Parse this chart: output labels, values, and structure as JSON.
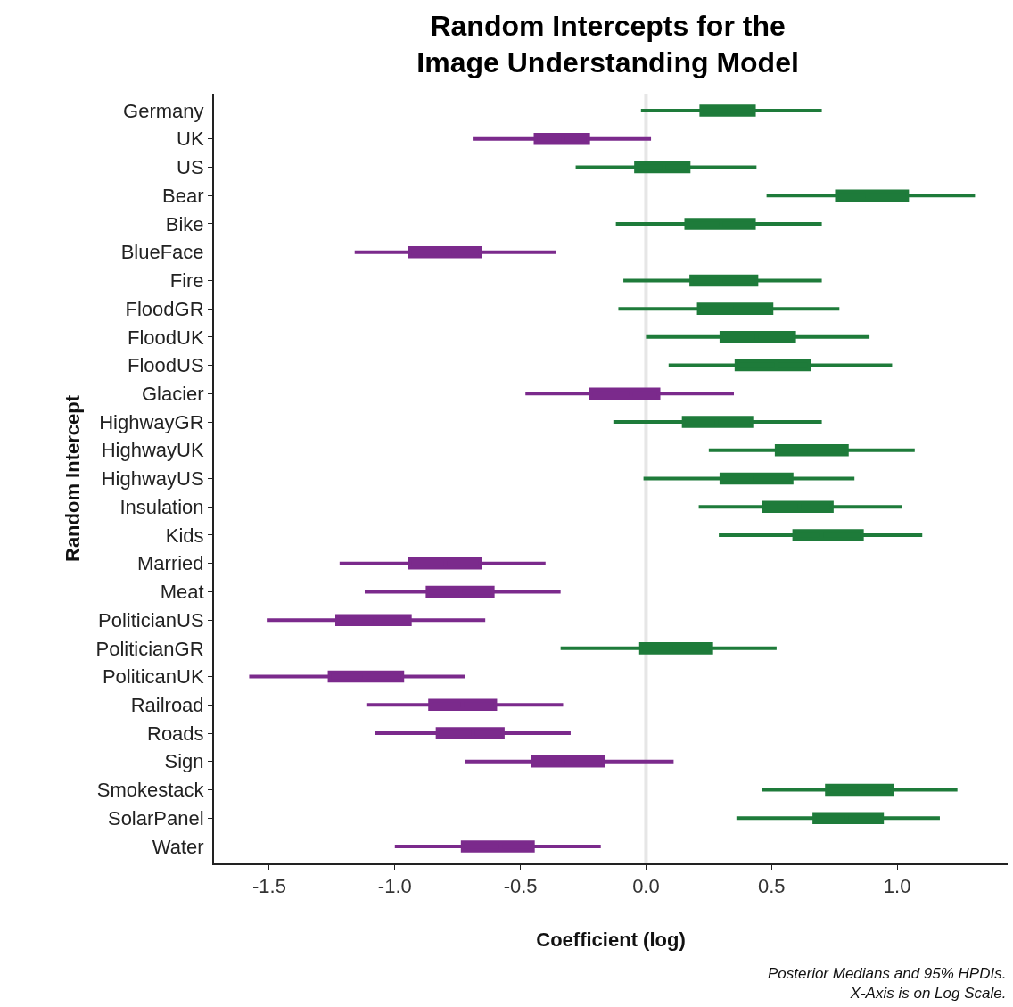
{
  "chart_data": {
    "type": "box",
    "orientation": "horizontal",
    "title": "Random Intercepts for the\nImage Understanding Model",
    "xlabel": "Coefficient (log)",
    "ylabel": "Random Intercept",
    "annotations": [
      "Posterior Medians and 95% HPDIs.\nX-Axis is on Log Scale."
    ],
    "categories": [
      "Germany",
      "UK",
      "US",
      "Bear",
      "Bike",
      "BlueFace",
      "Fire",
      "FloodGR",
      "FloodUK",
      "FloodUS",
      "Glacier",
      "HighwayGR",
      "HighwayUK",
      "HighwayUS",
      "Insulation",
      "Kids",
      "Married",
      "Meat",
      "PoliticianUS",
      "PoliticianGR",
      "PoliticanUK",
      "Railroad",
      "Roads",
      "Sign",
      "Smokestack",
      "SolarPanel",
      "Water"
    ],
    "boxes": [
      {
        "low": -0.02,
        "q1": 0.22,
        "median": 0.33,
        "q3": 0.43,
        "high": 0.7
      },
      {
        "low": -0.69,
        "q1": -0.44,
        "median": -0.33,
        "q3": -0.23,
        "high": 0.02
      },
      {
        "low": -0.28,
        "q1": -0.04,
        "median": 0.07,
        "q3": 0.17,
        "high": 0.44
      },
      {
        "low": 0.48,
        "q1": 0.76,
        "median": 0.88,
        "q3": 1.04,
        "high": 1.31
      },
      {
        "low": -0.12,
        "q1": 0.16,
        "median": 0.3,
        "q3": 0.43,
        "high": 0.7
      },
      {
        "low": -1.16,
        "q1": -0.94,
        "median": -0.78,
        "q3": -0.66,
        "high": -0.36
      },
      {
        "low": -0.09,
        "q1": 0.18,
        "median": 0.3,
        "q3": 0.44,
        "high": 0.7
      },
      {
        "low": -0.11,
        "q1": 0.21,
        "median": 0.34,
        "q3": 0.5,
        "high": 0.77
      },
      {
        "low": 0.0,
        "q1": 0.3,
        "median": 0.44,
        "q3": 0.59,
        "high": 0.89
      },
      {
        "low": 0.09,
        "q1": 0.36,
        "median": 0.52,
        "q3": 0.65,
        "high": 0.98
      },
      {
        "low": -0.48,
        "q1": -0.22,
        "median": -0.06,
        "q3": 0.05,
        "high": 0.35
      },
      {
        "low": -0.13,
        "q1": 0.15,
        "median": 0.28,
        "q3": 0.42,
        "high": 0.7
      },
      {
        "low": 0.25,
        "q1": 0.52,
        "median": 0.65,
        "q3": 0.8,
        "high": 1.07
      },
      {
        "low": -0.01,
        "q1": 0.3,
        "median": 0.42,
        "q3": 0.58,
        "high": 0.83
      },
      {
        "low": 0.21,
        "q1": 0.47,
        "median": 0.61,
        "q3": 0.74,
        "high": 1.02
      },
      {
        "low": 0.29,
        "q1": 0.59,
        "median": 0.7,
        "q3": 0.86,
        "high": 1.1
      },
      {
        "low": -1.22,
        "q1": -0.94,
        "median": -0.8,
        "q3": -0.66,
        "high": -0.4
      },
      {
        "low": -1.12,
        "q1": -0.87,
        "median": -0.74,
        "q3": -0.61,
        "high": -0.34
      },
      {
        "low": -1.51,
        "q1": -1.23,
        "median": -1.08,
        "q3": -0.94,
        "high": -0.64
      },
      {
        "low": -0.34,
        "q1": -0.02,
        "median": 0.1,
        "q3": 0.26,
        "high": 0.52
      },
      {
        "low": -1.58,
        "q1": -1.26,
        "median": -1.12,
        "q3": -0.97,
        "high": -0.72
      },
      {
        "low": -1.11,
        "q1": -0.86,
        "median": -0.73,
        "q3": -0.6,
        "high": -0.33
      },
      {
        "low": -1.08,
        "q1": -0.83,
        "median": -0.69,
        "q3": -0.57,
        "high": -0.3
      },
      {
        "low": -0.72,
        "q1": -0.45,
        "median": -0.33,
        "q3": -0.17,
        "high": 0.11
      },
      {
        "low": 0.46,
        "q1": 0.72,
        "median": 0.85,
        "q3": 0.98,
        "high": 1.24
      },
      {
        "low": 0.36,
        "q1": 0.67,
        "median": 0.8,
        "q3": 0.94,
        "high": 1.17
      },
      {
        "low": -1.0,
        "q1": -0.73,
        "median": -0.58,
        "q3": -0.45,
        "high": -0.18
      }
    ],
    "colors": [
      "#1e7b3a",
      "#7b2a8c",
      "#1e7b3a",
      "#1e7b3a",
      "#1e7b3a",
      "#7b2a8c",
      "#1e7b3a",
      "#1e7b3a",
      "#1e7b3a",
      "#1e7b3a",
      "#7b2a8c",
      "#1e7b3a",
      "#1e7b3a",
      "#1e7b3a",
      "#1e7b3a",
      "#1e7b3a",
      "#7b2a8c",
      "#7b2a8c",
      "#7b2a8c",
      "#1e7b3a",
      "#7b2a8c",
      "#7b2a8c",
      "#7b2a8c",
      "#7b2a8c",
      "#1e7b3a",
      "#1e7b3a",
      "#7b2a8c"
    ],
    "ref_lines": [
      {
        "axis": "x",
        "value": 0,
        "color": "#e6e6e6"
      }
    ],
    "xlim": [
      -1.72,
      1.44
    ],
    "xticks": [
      {
        "value": -1.5,
        "label": "-1.5"
      },
      {
        "value": -1.0,
        "label": "-1.0"
      },
      {
        "value": -0.5,
        "label": "-0.5"
      },
      {
        "value": 0.0,
        "label": "0.0"
      },
      {
        "value": 0.5,
        "label": "0.5"
      },
      {
        "value": 1.0,
        "label": "1.0"
      }
    ],
    "grid": false
  }
}
